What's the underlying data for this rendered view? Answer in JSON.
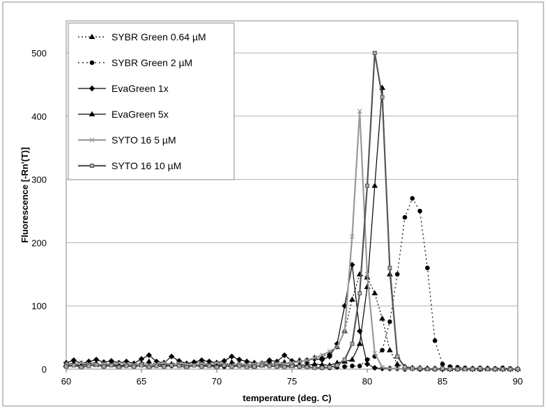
{
  "chart_data": {
    "type": "line",
    "title": "",
    "xlabel": "temperature (deg. C)",
    "ylabel": "Fluorescence [-Rn'(T)]",
    "xlim": [
      60,
      90
    ],
    "ylim": [
      0,
      500
    ],
    "xticks": [
      60,
      65,
      70,
      75,
      80,
      85,
      90
    ],
    "yticks": [
      0,
      100,
      200,
      300,
      400,
      500
    ],
    "grid": "horizontal",
    "legend_position": "top-left",
    "x": [
      60,
      60.5,
      61,
      61.5,
      62,
      62.5,
      63,
      63.5,
      64,
      64.5,
      65,
      65.5,
      66,
      66.5,
      67,
      67.5,
      68,
      68.5,
      69,
      69.5,
      70,
      70.5,
      71,
      71.5,
      72,
      72.5,
      73,
      73.5,
      74,
      74.5,
      75,
      75.5,
      76,
      76.5,
      77,
      77.5,
      78,
      78.5,
      79,
      79.5,
      80,
      80.5,
      81,
      81.5,
      82,
      82.5,
      83,
      83.5,
      84,
      84.5,
      85,
      85.5,
      86,
      86.5,
      87,
      87.5,
      88,
      88.5,
      89,
      89.5,
      90
    ],
    "series": [
      {
        "name": "SYBR Green 0.64 µM",
        "color": "#000000",
        "dash": "2,3",
        "line": true,
        "marker": "triangle",
        "values": [
          8,
          10,
          6,
          12,
          9,
          7,
          11,
          8,
          10,
          6,
          9,
          12,
          7,
          10,
          8,
          11,
          6,
          9,
          12,
          8,
          10,
          7,
          11,
          9,
          6,
          10,
          8,
          12,
          9,
          11,
          10,
          14,
          12,
          18,
          20,
          25,
          35,
          60,
          110,
          150,
          145,
          120,
          80,
          30,
          8,
          3,
          2,
          2,
          1,
          1,
          1,
          1,
          1,
          0,
          1,
          0,
          1,
          0,
          0,
          0,
          0
        ]
      },
      {
        "name": "SYBR Green 2 µM",
        "color": "#000000",
        "dash": "2,4",
        "line": true,
        "marker": "circle",
        "values": [
          5,
          7,
          4,
          6,
          8,
          5,
          7,
          4,
          6,
          5,
          8,
          4,
          6,
          7,
          5,
          6,
          4,
          7,
          5,
          6,
          8,
          4,
          6,
          5,
          7,
          4,
          6,
          5,
          7,
          5,
          6,
          4,
          5,
          3,
          2,
          2,
          3,
          4,
          5,
          5,
          15,
          20,
          30,
          75,
          150,
          240,
          270,
          250,
          160,
          45,
          8,
          4,
          3,
          2,
          1,
          2,
          1,
          1,
          2,
          1,
          0
        ]
      },
      {
        "name": "EvaGreen 1x",
        "color": "#000000",
        "dash": "",
        "line": true,
        "marker": "diamond",
        "values": [
          10,
          14,
          9,
          12,
          15,
          11,
          13,
          10,
          12,
          9,
          16,
          22,
          12,
          10,
          20,
          13,
          9,
          11,
          14,
          12,
          10,
          13,
          20,
          15,
          12,
          10,
          9,
          14,
          12,
          22,
          13,
          12,
          14,
          16,
          15,
          20,
          40,
          100,
          165,
          60,
          8,
          2,
          1,
          1,
          1,
          0,
          1,
          0,
          1,
          0,
          0,
          0,
          0,
          1,
          0,
          0,
          1,
          0,
          0,
          0,
          0
        ]
      },
      {
        "name": "EvaGreen 5x",
        "color": "#000000",
        "dash": "",
        "line": true,
        "marker": "triangle",
        "values": [
          6,
          8,
          5,
          9,
          7,
          6,
          8,
          5,
          7,
          6,
          9,
          5,
          8,
          6,
          7,
          9,
          5,
          8,
          6,
          7,
          5,
          8,
          6,
          7,
          9,
          5,
          6,
          8,
          7,
          6,
          5,
          7,
          6,
          8,
          7,
          6,
          10,
          12,
          15,
          40,
          130,
          290,
          445,
          150,
          20,
          4,
          2,
          1,
          1,
          1,
          1,
          0,
          1,
          0,
          0,
          1,
          0,
          0,
          1,
          0,
          0
        ]
      },
      {
        "name": "SYTO 16 5 µM",
        "color": "#999999",
        "dash": "",
        "line": true,
        "marker": "x",
        "values": [
          9,
          7,
          10,
          8,
          6,
          9,
          7,
          10,
          8,
          7,
          9,
          6,
          8,
          10,
          7,
          9,
          8,
          6,
          9,
          7,
          10,
          8,
          6,
          9,
          7,
          8,
          10,
          7,
          9,
          8,
          10,
          12,
          14,
          18,
          22,
          28,
          35,
          60,
          210,
          408,
          150,
          25,
          3,
          1,
          1,
          0,
          1,
          0,
          0,
          1,
          0,
          0,
          0,
          0,
          1,
          0,
          0,
          0,
          0,
          0,
          0
        ]
      },
      {
        "name": "SYTO 16 10 µM",
        "color": "#555555",
        "dash": "",
        "line": true,
        "marker": "square",
        "values": [
          4,
          6,
          3,
          5,
          7,
          4,
          6,
          3,
          5,
          4,
          6,
          3,
          5,
          4,
          6,
          5,
          3,
          6,
          4,
          5,
          3,
          6,
          4,
          5,
          3,
          4,
          6,
          5,
          4,
          3,
          5,
          4,
          3,
          2,
          2,
          3,
          6,
          15,
          40,
          120,
          290,
          500,
          430,
          160,
          20,
          3,
          1,
          1,
          0,
          0,
          1,
          0,
          0,
          0,
          0,
          1,
          0,
          0,
          0,
          0,
          0
        ]
      }
    ]
  }
}
